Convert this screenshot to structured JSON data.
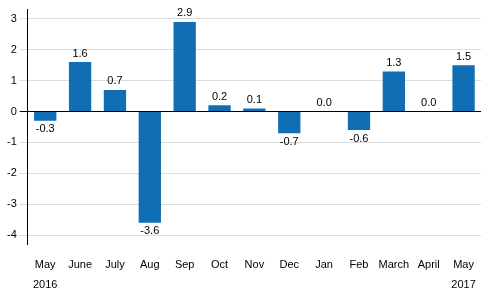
{
  "chart_data": {
    "type": "bar",
    "categories": [
      [
        "May",
        "2016"
      ],
      "June",
      "July",
      "Aug",
      "Sep",
      "Oct",
      "Nov",
      "Dec",
      "Jan",
      "Feb",
      "March",
      "April",
      [
        "May",
        "2017"
      ]
    ],
    "values": [
      -0.3,
      1.6,
      0.7,
      -3.6,
      2.9,
      0.2,
      0.1,
      -0.7,
      0.0,
      -0.6,
      1.3,
      0.0,
      1.5
    ],
    "value_labels": [
      "-0.3",
      "1.6",
      "0.7",
      "-3.6",
      "2.9",
      "0.2",
      "0.1",
      "-0.7",
      "0.0",
      "-0.6",
      "1.3",
      "0.0",
      "1.5"
    ],
    "color": "#0f6eb4",
    "ylim": [
      -4.3,
      3.3
    ],
    "yticks": [
      -4,
      -3,
      -2,
      -1,
      0,
      1,
      2,
      3
    ],
    "grid": true,
    "data_labels": true
  }
}
